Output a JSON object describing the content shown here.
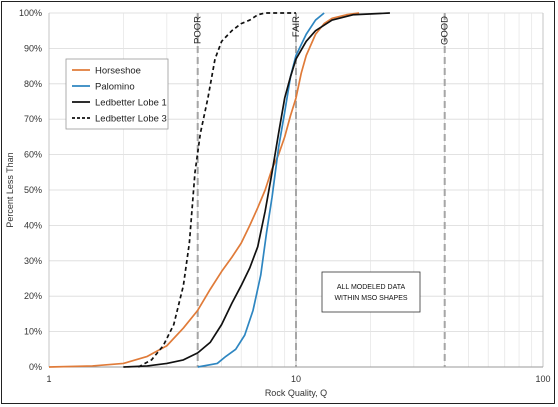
{
  "chart_data": {
    "type": "line",
    "title": "",
    "xlabel": "Rock Quality, Q",
    "ylabel": "Percent Less Than",
    "x_scale": "log",
    "xlim": [
      1,
      100
    ],
    "ylim": [
      0,
      100
    ],
    "x_ticks": [
      "1",
      "10",
      "100"
    ],
    "y_ticks": [
      "0%",
      "10%",
      "20%",
      "30%",
      "40%",
      "50%",
      "60%",
      "70%",
      "80%",
      "90%",
      "100%"
    ],
    "grid": true,
    "legend_position": "upper-left",
    "series": [
      {
        "name": "Horseshoe",
        "color": "#e07b39",
        "dash": "solid",
        "points": [
          [
            1,
            0
          ],
          [
            1.5,
            0.3
          ],
          [
            2,
            1
          ],
          [
            2.5,
            3
          ],
          [
            3,
            6
          ],
          [
            3.5,
            11
          ],
          [
            4,
            16
          ],
          [
            4.5,
            22
          ],
          [
            5,
            27
          ],
          [
            5.5,
            31
          ],
          [
            6,
            35
          ],
          [
            6.5,
            40
          ],
          [
            7,
            45
          ],
          [
            7.5,
            50
          ],
          [
            8,
            56
          ],
          [
            8.5,
            60
          ],
          [
            9,
            65
          ],
          [
            9.5,
            71
          ],
          [
            10,
            76
          ],
          [
            10.5,
            83
          ],
          [
            11,
            88
          ],
          [
            12,
            94
          ],
          [
            13,
            97
          ],
          [
            14,
            98.5
          ],
          [
            16,
            99.5
          ],
          [
            18,
            100
          ]
        ]
      },
      {
        "name": "Palomino",
        "color": "#2e86c1",
        "dash": "solid",
        "points": [
          [
            4,
            0
          ],
          [
            4.8,
            1
          ],
          [
            5.2,
            3
          ],
          [
            5.7,
            5
          ],
          [
            6.2,
            9
          ],
          [
            6.7,
            16
          ],
          [
            7.2,
            26
          ],
          [
            7.6,
            38
          ],
          [
            8,
            48
          ],
          [
            8.5,
            62
          ],
          [
            9,
            72
          ],
          [
            9.5,
            82
          ],
          [
            10,
            88
          ],
          [
            11,
            94
          ],
          [
            12,
            98
          ],
          [
            13,
            100
          ]
        ]
      },
      {
        "name": "Ledbetter Lobe 1",
        "color": "#111111",
        "dash": "solid",
        "points": [
          [
            2,
            0
          ],
          [
            2.5,
            0.3
          ],
          [
            3,
            1
          ],
          [
            3.5,
            2
          ],
          [
            4,
            4
          ],
          [
            4.5,
            7
          ],
          [
            5,
            12
          ],
          [
            5.5,
            18
          ],
          [
            6,
            23
          ],
          [
            6.5,
            28
          ],
          [
            7,
            34
          ],
          [
            7.5,
            44
          ],
          [
            8,
            55
          ],
          [
            8.5,
            66
          ],
          [
            9,
            76
          ],
          [
            9.5,
            82
          ],
          [
            10,
            87
          ],
          [
            11,
            92
          ],
          [
            12,
            95
          ],
          [
            14,
            98
          ],
          [
            17,
            99.5
          ],
          [
            24,
            100
          ]
        ]
      },
      {
        "name": "Ledbetter Lobe 3",
        "color": "#111111",
        "dash": "dashed",
        "points": [
          [
            2.3,
            0
          ],
          [
            2.6,
            2
          ],
          [
            2.9,
            6
          ],
          [
            3.2,
            12
          ],
          [
            3.5,
            23
          ],
          [
            3.7,
            35
          ],
          [
            3.9,
            55
          ],
          [
            4.1,
            66
          ],
          [
            4.4,
            76
          ],
          [
            4.7,
            87
          ],
          [
            5,
            92
          ],
          [
            5.5,
            95
          ],
          [
            6,
            97
          ],
          [
            6.5,
            98
          ],
          [
            7,
            99.5
          ],
          [
            7.5,
            100
          ],
          [
            10,
            100
          ]
        ]
      }
    ],
    "reference_lines": [
      {
        "label": "POOR",
        "x": 4
      },
      {
        "label": "FAIR",
        "x": 10
      },
      {
        "label": "GOOD",
        "x": 40
      }
    ],
    "annotation": [
      "ALL MODELED DATA",
      "WITHIN MSO SHAPES"
    ]
  }
}
